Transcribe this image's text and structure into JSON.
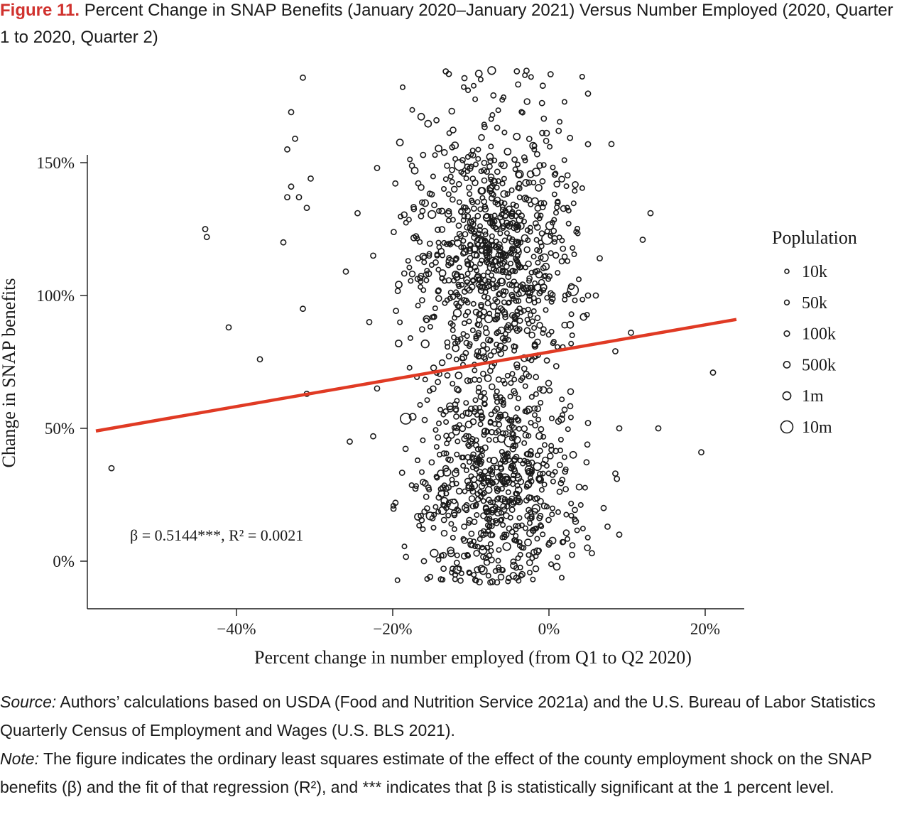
{
  "figure": {
    "label": "Figure 11.",
    "title": "Percent Change in SNAP Benefits (January 2020–January 2021) Versus Number Employed (2020, Quarter 1 to 2020, Quarter 2)"
  },
  "chart_data": {
    "type": "scatter",
    "xlabel": "Percent change in number employed (from Q1 to Q2 2020)",
    "ylabel": "Change in SNAP benefits",
    "xlim": [
      -58,
      25
    ],
    "ylim": [
      -18,
      185
    ],
    "x_ticks": [
      -40,
      -20,
      0,
      20
    ],
    "x_tick_labels": [
      "−40%",
      "−20%",
      "0%",
      "20%"
    ],
    "y_ticks": [
      0,
      50,
      100,
      150
    ],
    "y_tick_labels": [
      "0%",
      "50%",
      "100%",
      "150%"
    ],
    "grid": false,
    "legend": {
      "title": "Poplulation",
      "position": "right",
      "items": [
        {
          "label": "10k",
          "size": 1
        },
        {
          "label": "50k",
          "size": 2
        },
        {
          "label": "100k",
          "size": 3
        },
        {
          "label": "500k",
          "size": 4
        },
        {
          "label": "1m",
          "size": 5
        },
        {
          "label": "10m",
          "size": 6
        }
      ]
    },
    "regression": {
      "x": [
        -58,
        24
      ],
      "y": [
        49,
        91
      ],
      "color": "#e03a24",
      "annotation": "β = 0.5144***, R² = 0.0021"
    },
    "point_color": "#1a1a1a",
    "cloud": {
      "count": 1500,
      "x_center": -7,
      "x_spread": 6,
      "y_range": [
        -8,
        185
      ],
      "note": "dense cluster of approximately 1,500 county points; outliers listed individually"
    },
    "outliers": [
      {
        "x": -56,
        "y": 35
      },
      {
        "x": -41,
        "y": 88
      },
      {
        "x": -37,
        "y": 76
      },
      {
        "x": -44,
        "y": 125
      },
      {
        "x": -43.8,
        "y": 122
      },
      {
        "x": -34,
        "y": 120
      },
      {
        "x": -31.5,
        "y": 95
      },
      {
        "x": -31,
        "y": 63
      },
      {
        "x": -31,
        "y": 133
      },
      {
        "x": -30.5,
        "y": 144
      },
      {
        "x": -32,
        "y": 137
      },
      {
        "x": -33.5,
        "y": 137
      },
      {
        "x": -33,
        "y": 141
      },
      {
        "x": -33.5,
        "y": 155
      },
      {
        "x": -33,
        "y": 169
      },
      {
        "x": -31.5,
        "y": 182
      },
      {
        "x": -32.5,
        "y": 159
      },
      {
        "x": -26,
        "y": 109
      },
      {
        "x": -25.5,
        "y": 45
      },
      {
        "x": -24.5,
        "y": 131
      },
      {
        "x": -23,
        "y": 90
      },
      {
        "x": -22.5,
        "y": 115
      },
      {
        "x": -22,
        "y": 148
      },
      {
        "x": -22,
        "y": 65
      },
      {
        "x": -22.5,
        "y": 47
      },
      {
        "x": 5,
        "y": 176
      },
      {
        "x": 8,
        "y": 157
      },
      {
        "x": 13,
        "y": 131
      },
      {
        "x": 12,
        "y": 121
      },
      {
        "x": 6.5,
        "y": 114
      },
      {
        "x": 5,
        "y": 100
      },
      {
        "x": 6,
        "y": 100
      },
      {
        "x": 8.5,
        "y": 79
      },
      {
        "x": 10.5,
        "y": 86
      },
      {
        "x": 21,
        "y": 71
      },
      {
        "x": 9,
        "y": 50
      },
      {
        "x": 14,
        "y": 50
      },
      {
        "x": 19.5,
        "y": 41
      },
      {
        "x": 8.5,
        "y": 33
      },
      {
        "x": 8.7,
        "y": 31
      },
      {
        "x": 7,
        "y": 20
      },
      {
        "x": 7.5,
        "y": 13
      },
      {
        "x": 9,
        "y": 10
      },
      {
        "x": 5.5,
        "y": 3
      },
      {
        "x": 2,
        "y": 57
      },
      {
        "x": 5,
        "y": 52
      },
      {
        "x": -12,
        "y": -5
      },
      {
        "x": -7.5,
        "y": -8
      },
      {
        "x": 3,
        "y": 6
      },
      {
        "x": -16,
        "y": 0
      }
    ]
  },
  "notes": {
    "source_label": "Source:",
    "source_text": " Authors’ calculations based on USDA (Food and Nutrition Service 2021a) and the U.S. Bureau of Labor Statistics Quarterly Census of Employment and Wages (U.S. BLS 2021).",
    "note_label": "Note:",
    "note_text": " The figure indicates the ordinary least squares estimate of the effect of the county employment shock on the SNAP benefits (β) and the fit of that regression (R²), and *** indicates that β is statistically significant at the 1 percent level."
  }
}
